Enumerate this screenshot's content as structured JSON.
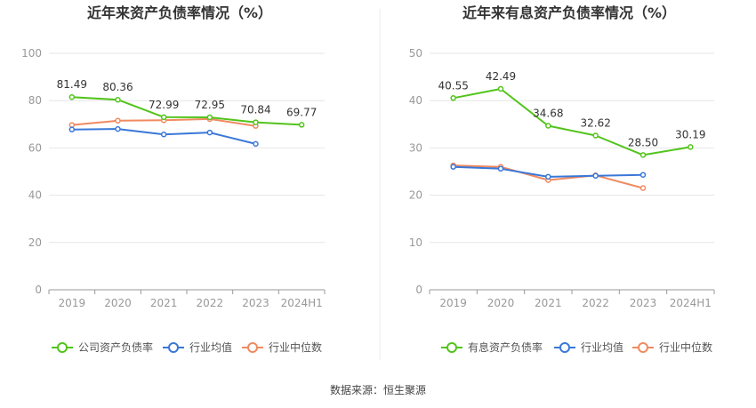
{
  "source_label": "数据来源：恒生聚源",
  "chart_data": [
    {
      "type": "line",
      "title": "近年来资产负债率情况（%）",
      "categories": [
        "2019",
        "2020",
        "2021",
        "2022",
        "2023",
        "2024H1"
      ],
      "ylim": [
        0,
        100
      ],
      "yticks": [
        0,
        20,
        40,
        60,
        80,
        100
      ],
      "grid": true,
      "legend_position": "bottom",
      "series": [
        {
          "name": "公司资产负债率",
          "color": "#52c41a",
          "show_labels": true,
          "values": [
            81.49,
            80.36,
            72.99,
            72.95,
            70.84,
            69.77
          ]
        },
        {
          "name": "行业均值",
          "color": "#3a78d8",
          "show_labels": false,
          "values": [
            67.8,
            68.0,
            65.7,
            66.5,
            61.7,
            null
          ]
        },
        {
          "name": "行业中位数",
          "color": "#f08a60",
          "show_labels": false,
          "values": [
            69.7,
            71.5,
            71.7,
            72.2,
            69.3,
            null
          ]
        }
      ]
    },
    {
      "type": "line",
      "title": "近年来有息资产负债率情况（%）",
      "categories": [
        "2019",
        "2020",
        "2021",
        "2022",
        "2023",
        "2024H1"
      ],
      "ylim": [
        0,
        50
      ],
      "yticks": [
        0,
        10,
        20,
        30,
        40,
        50
      ],
      "grid": true,
      "legend_position": "bottom",
      "series": [
        {
          "name": "有息资产负债率",
          "color": "#52c41a",
          "show_labels": true,
          "values": [
            40.55,
            42.49,
            34.68,
            32.62,
            28.5,
            30.19
          ]
        },
        {
          "name": "行业均值",
          "color": "#3a78d8",
          "show_labels": false,
          "values": [
            26.0,
            25.6,
            23.9,
            24.1,
            24.3,
            null
          ]
        },
        {
          "name": "行业中位数",
          "color": "#f08a60",
          "show_labels": false,
          "values": [
            26.3,
            26.0,
            23.2,
            24.2,
            21.5,
            null
          ]
        }
      ]
    }
  ]
}
